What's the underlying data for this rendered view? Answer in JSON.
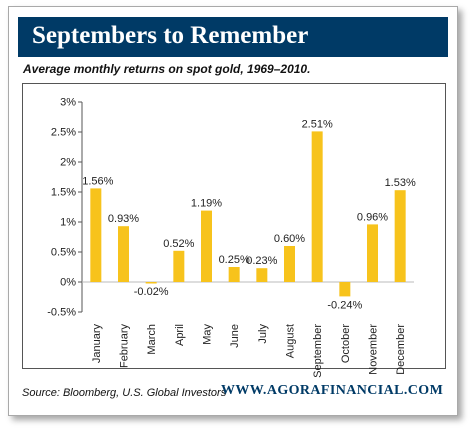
{
  "header": {
    "title": "Septembers to Remember",
    "subtitle": "Average monthly returns on spot gold, 1969–2010."
  },
  "footer": {
    "source": "Source: Bloomberg, U.S. Global Investors",
    "website": "WWW.AGORAFINANCIAL.COM"
  },
  "colors": {
    "banner": "#003a66",
    "bar": "#f7c31c",
    "website_text": "#003a66"
  },
  "chart_data": {
    "type": "bar",
    "title": "Septembers to Remember",
    "subtitle": "Average monthly returns on spot gold, 1969–2010.",
    "categories": [
      "January",
      "February",
      "March",
      "April",
      "May",
      "June",
      "July",
      "August",
      "September",
      "October",
      "November",
      "December"
    ],
    "values": [
      1.56,
      0.93,
      -0.02,
      0.52,
      1.19,
      0.25,
      0.23,
      0.6,
      2.51,
      -0.24,
      0.96,
      1.53
    ],
    "data_labels": [
      "1.56%",
      "0.93%",
      "-0.02%",
      "0.52%",
      "1.19%",
      "0.25%",
      "0.23%",
      "0.60%",
      "2.51%",
      "-0.24%",
      "0.96%",
      "1.53%"
    ],
    "yticks": [
      3,
      2.5,
      2,
      1.5,
      1,
      0.5,
      0,
      -0.5
    ],
    "ytick_labels": [
      "3%",
      "2.5%",
      "2%",
      "1.5%",
      "1%",
      "0.5%",
      "0%",
      "-0.5%"
    ],
    "ylim": [
      -0.5,
      3
    ],
    "grid": false,
    "legend": "none",
    "xlabel": "",
    "ylabel": ""
  }
}
